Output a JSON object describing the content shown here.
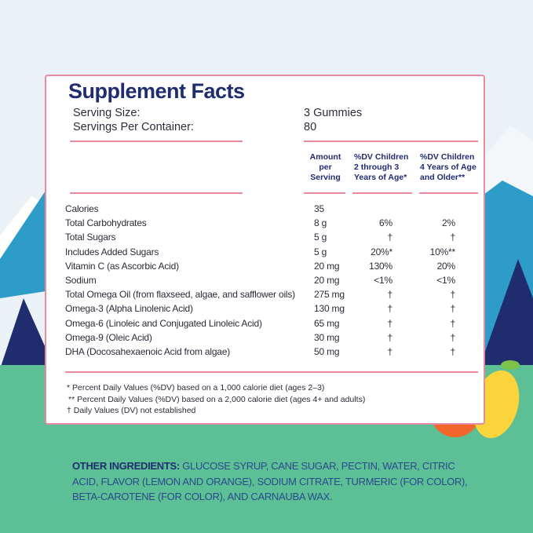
{
  "panel": {
    "title": "Supplement Facts",
    "serving_size": {
      "label": "Serving Size:",
      "value": "3 Gummies"
    },
    "servings_per_container": {
      "label": "Servings Per Container:",
      "value": "80"
    },
    "columns": [
      "Amount per Serving",
      "%DV Children 2 through 3 Years of Age*",
      "%DV Children 4 Years of Age and Older**"
    ],
    "rows": [
      {
        "label": "Calories",
        "amount": "35"
      },
      {
        "label": "Total Carbohydrates",
        "amount": "8 g",
        "dv_2_3": "6%",
        "dv_4_plus": "2%"
      },
      {
        "label": "Total Sugars",
        "amount": "5 g",
        "dv_2_3": "†",
        "dv_4_plus": "†"
      },
      {
        "label": "Includes Added Sugars",
        "amount": "5 g",
        "dv_2_3": "20%*",
        "dv_4_plus": "10%**"
      },
      {
        "label": "Vitamin C (as Ascorbic Acid)",
        "amount": "20 mg",
        "dv_2_3": "130%",
        "dv_4_plus": "20%"
      },
      {
        "label": "Sodium",
        "amount": "20 mg",
        "dv_2_3": "<1%",
        "dv_4_plus": "<1%"
      },
      {
        "label": "Total Omega Oil (from flaxseed, algae, and safflower oils)",
        "amount": "275 mg",
        "dv_2_3": "†",
        "dv_4_plus": "†"
      },
      {
        "label": "Omega-3 (Alpha Linolenic Acid)",
        "amount": "130 mg",
        "dv_2_3": "†",
        "dv_4_plus": "†"
      },
      {
        "label": "Omega-6 (Linoleic and Conjugated Linoleic Acid)",
        "amount": "65 mg",
        "dv_2_3": "†",
        "dv_4_plus": "†"
      },
      {
        "label": "Omega-9 (Oleic Acid)",
        "amount": "30 mg",
        "dv_2_3": "†",
        "dv_4_plus": "†"
      },
      {
        "label": "DHA (Docosahexaenoic Acid from algae)",
        "amount": "50 mg",
        "dv_2_3": "†",
        "dv_4_plus": "†"
      }
    ],
    "footnotes": [
      "* Percent Daily Values (%DV) based on a 1,000 calorie diet (ages 2–3)",
      "** Percent Daily Values (%DV) based on a 2,000 calorie diet (ages 4+ and adults)",
      "† Daily Values (DV) not established"
    ]
  },
  "other_ingredients": {
    "label": "OTHER INGREDIENTS:",
    "text": "GLUCOSE SYRUP, CANE SUGAR, PECTIN, WATER, CITRIC ACID, FLAVOR (LEMON AND ORANGE), SODIUM CITRATE, TURMERIC (FOR COLOR), BETA-CAROTENE (FOR COLOR), AND CARNAUBA WAX."
  }
}
